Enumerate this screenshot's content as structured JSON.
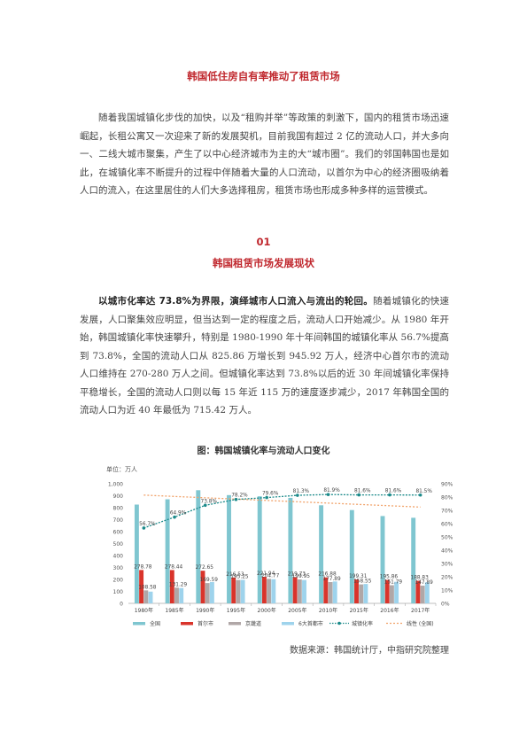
{
  "doc": {
    "title": "韩国低住房自有率推动了租赁市场",
    "intro": "随着我国城镇化步伐的加快，以及“租购并举”等政策的刺激下，国内的租赁市场迅速崛起，长租公寓又一次迎来了新的发展契机，目前我国有超过 2 亿的流动人口，并大多向一、二线大城市聚集，产生了以中心经济城市为主的大“城市圈”。我们的邻国韩国也是如此，在城镇化率不断提升的过程中伴随着大量的人口流动，以首尔为中心的经济圈吸纳着人口的流入，在这里居住的人们大多选择租房，租赁市场也形成多种多样的运营模式。",
    "section_number": "01",
    "section_title": "韩国租赁市场发展现状",
    "lead": "以城市化率达 73.8%为界限，演绎城市人口流入与流出的轮回。",
    "body": "随着城镇化的快速发展，人口聚集效应明显，但当达到一定的程度之后，流动人口开始减少。从 1980 年开始，韩国城镇化率快速攀升，特别是 1980-1990 年十年间韩国的城镇化率从 56.7%提高到 73.8%，全国的流动人口从 825.86 万增长到 945.92 万人，经济中心首尔市的流动人口维持在 270-280 万人之间。但城镇化率达到 73.8%以后的近 30 年间城镇化率保持平稳增长，全国的流动人口则以每 15 年近 115 万的速度逐步减少，2017 年韩国全国的流动人口为近 40 年最低为 715.42 万人。",
    "figure_caption": "图：韩国城镇化率与流动人口变化",
    "source": "数据来源：韩国统计厅，中指研究院整理"
  },
  "chart_data": {
    "type": "bar",
    "unit_label": "单位：万人",
    "categories": [
      "1980年",
      "1985年",
      "1990年",
      "1995年",
      "2000年",
      "2005年",
      "2010年",
      "2015年",
      "2016年",
      "2017年"
    ],
    "series": [
      {
        "name": "全国",
        "values": [
          825.86,
          870,
          945.92,
          905,
          895,
          882,
          820,
          780,
          730,
          715.42
        ],
        "color": "#7fc6d0"
      },
      {
        "name": "首尔市",
        "values": [
          278.78,
          278.44,
          272.65,
          216.53,
          221.94,
          219.73,
          216.88,
          199.31,
          195.86,
          188.83
        ],
        "color": "#d9342b"
      },
      {
        "name": "京畿道",
        "values": [
          108.58,
          131.29,
          169.59,
          195.25,
          204.77,
          199.95,
          177.89,
          158.55,
          151.79,
          147.89
        ],
        "color": "#b0a7a7"
      },
      {
        "name": "6大首都市",
        "values": [
          98,
          128,
          178,
          196,
          202,
          195,
          183,
          162,
          180,
          176
        ],
        "color": "#9ed3ec"
      },
      {
        "name": "城镇化率",
        "values": [
          56.7,
          64.9,
          73.8,
          78.2,
          79.6,
          81.3,
          81.9,
          81.6,
          81.6,
          81.5
        ],
        "color": "#1b8a8a",
        "axis": "right"
      },
      {
        "name": "线性 (全国)",
        "trend_from": [
          905,
          805
        ],
        "color": "#f1a36b",
        "axis": "left"
      }
    ],
    "data_labels": {
      "全国": [],
      "首尔市": [
        "278.78",
        "278.44",
        "272.65",
        "216.53",
        "221.94",
        "219.73",
        "216.88",
        "199.31",
        "195.86",
        "188.83"
      ],
      "京畿道": [
        "108.58",
        "131.29",
        "169.59",
        "195.25",
        "204.77",
        "199.95",
        "177.89",
        "158.55",
        "151.79",
        "147.89"
      ],
      "城镇化率": [
        "56.7%",
        "64.9%",
        "73.8%",
        "78.2%",
        "79.6%",
        "81.3%",
        "81.9%",
        "81.6%",
        "81.6%",
        "81.5%"
      ]
    },
    "ylim_left": [
      0,
      1000
    ],
    "yticks_left": [
      "0",
      "100",
      "200",
      "300",
      "400",
      "500",
      "600",
      "700",
      "800",
      "900",
      "1,000"
    ],
    "ylim_right": [
      0,
      90
    ],
    "yticks_right": [
      "0%",
      "10%",
      "20%",
      "30%",
      "40%",
      "50%",
      "60%",
      "70%",
      "80%",
      "90%"
    ],
    "grid": false,
    "legend_position": "bottom"
  }
}
